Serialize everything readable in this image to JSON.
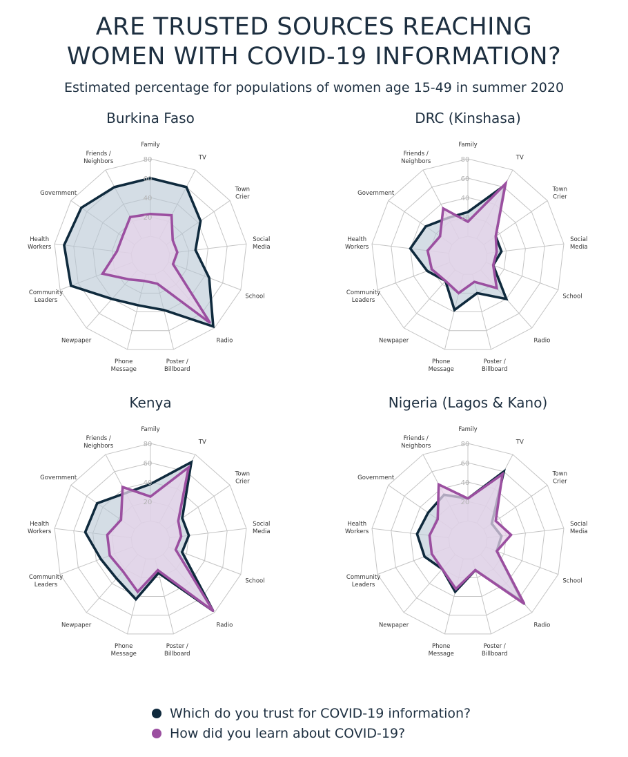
{
  "title_line1": "ARE TRUSTED SOURCES REACHING",
  "title_line2": "WOMEN WITH COVID-19 INFORMATION?",
  "subtitle": "Estimated percentage for populations of women age 15-49 in summer 2020",
  "colors": {
    "trust": "#0f2a3d",
    "trust_fill": "#b8c6d3",
    "learn": "#9b4fa0",
    "learn_fill": "#e7d3ea",
    "grid": "#c4c4c4",
    "text": "#1d2f40"
  },
  "legend": [
    {
      "label": "Which do you trust for COVID-19 information?",
      "color": "#0f2a3d"
    },
    {
      "label": "How did you learn about COVID-19?",
      "color": "#9b4fa0"
    }
  ],
  "chart_data": [
    {
      "type": "radar",
      "title": "Burkina Faso",
      "categories": [
        "Family",
        "TV",
        "Town\nCrier",
        "Social\nMedia",
        "School",
        "Radio",
        "Poster /\nBillboard",
        "Phone\nMessage",
        "Newpaper",
        "Community\nLeaders",
        "Health\nWorkers",
        "Government",
        "Friends /\nNeighbors"
      ],
      "rlim": [
        0,
        80
      ],
      "ticks": [
        "20",
        "40",
        "60",
        "80"
      ],
      "series": [
        {
          "name": "Which do you trust for COVID-19 information?",
          "values": [
            60,
            60,
            43,
            27,
            45,
            78,
            38,
            33,
            40,
            68,
            70,
            67,
            60
          ]
        },
        {
          "name": "How did you learn about COVID-19?",
          "values": [
            23,
            27,
            8,
            8,
            5,
            73,
            10,
            7,
            13,
            33,
            15,
            15,
            25
          ]
        }
      ]
    },
    {
      "type": "radar",
      "title": "DRC (Kinshasa)",
      "categories": [
        "Family",
        "TV",
        "Town\nCrier",
        "Social\nMedia",
        "School",
        "Radio",
        "Poster /\nBillboard",
        "Phone\nMessage",
        "Newpaper",
        "Community\nLeaders",
        "Health\nWorkers",
        "Government",
        "Friends /\nNeighbors"
      ],
      "rlim": [
        0,
        80
      ],
      "ticks": [
        "20",
        "40",
        "60",
        "80"
      ],
      "series": [
        {
          "name": "Which do you trust for COVID-19 information?",
          "values": [
            25,
            62,
            15,
            15,
            8,
            40,
            20,
            38,
            15,
            25,
            40,
            33,
            24
          ]
        },
        {
          "name": "How did you learn about COVID-19?",
          "values": [
            15,
            64,
            15,
            10,
            8,
            25,
            8,
            20,
            15,
            20,
            22,
            15,
            35
          ]
        }
      ]
    },
    {
      "type": "radar",
      "title": "Kenya",
      "categories": [
        "Family",
        "TV",
        "Town\nCrier",
        "Social\nMedia",
        "School",
        "Radio",
        "Poster /\nBillboard",
        "Phone\nMessage",
        "Newpaper",
        "Community\nLeaders",
        "Health\nWorkers",
        "Government",
        "Friends /\nNeighbors"
      ],
      "rlim": [
        0,
        80
      ],
      "ticks": [
        "20",
        "40",
        "60",
        "80"
      ],
      "series": [
        {
          "name": "Which do you trust for COVID-19 information?",
          "values": [
            38,
            71,
            20,
            20,
            15,
            78,
            15,
            43,
            33,
            35,
            48,
            47,
            35
          ]
        },
        {
          "name": "How did you learn about COVID-19?",
          "values": [
            25,
            65,
            15,
            12,
            8,
            78,
            12,
            35,
            23,
            25,
            25,
            17,
            42
          ]
        }
      ]
    },
    {
      "type": "radar",
      "title": "Nigeria (Lagos & Kano)",
      "categories": [
        "Family",
        "TV",
        "Town\nCrier",
        "Social\nMedia",
        "School",
        "Radio",
        "Poster /\nBillboard",
        "Phone\nMessage",
        "Newpaper",
        "Community\nLeaders",
        "Health\nWorkers",
        "Government",
        "Friends /\nNeighbors"
      ],
      "rlim": [
        0,
        80
      ],
      "ticks": [
        "20",
        "40",
        "60",
        "80"
      ],
      "series": [
        {
          "name": "Which do you trust for COVID-19 information?",
          "values": [
            23,
            60,
            10,
            15,
            12,
            65,
            12,
            35,
            20,
            28,
            33,
            30,
            33
          ]
        },
        {
          "name": "How did you learn about COVID-19?",
          "values": [
            23,
            57,
            15,
            25,
            12,
            68,
            12,
            32,
            20,
            20,
            20,
            18,
            45
          ]
        }
      ]
    }
  ]
}
